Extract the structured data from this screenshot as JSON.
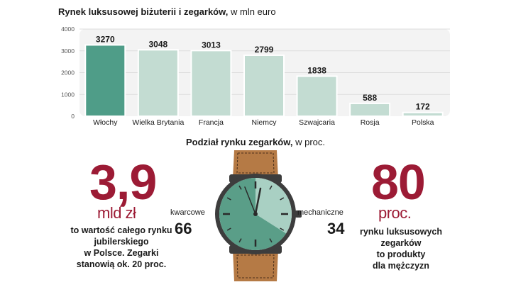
{
  "chart_title": {
    "bold": "Rynek luksusowej biżuterii i zegarków,",
    "unit": " w mln euro"
  },
  "chart_data": [
    {
      "type": "bar",
      "title": "Rynek luksusowej biżuterii i zegarków, w mln euro",
      "categories": [
        "Włochy",
        "Wielka Brytania",
        "Francja",
        "Niemcy",
        "Szwajcaria",
        "Rosja",
        "Polska"
      ],
      "values": [
        3270,
        3048,
        3013,
        2799,
        1838,
        588,
        172
      ],
      "highlight_index": 0,
      "yticks": [
        0,
        1000,
        2000,
        3000,
        4000
      ],
      "ylim": [
        0,
        4000
      ],
      "grid": true,
      "colors": {
        "highlight": "#4f9d88",
        "bar": "#c3dcd2",
        "bar_edge": "#ffffff",
        "panel": "#f3f3f3"
      }
    },
    {
      "type": "pie",
      "title": "Podział rynku zegarków, w proc.",
      "labels": [
        "kwarcowe",
        "mechaniczne"
      ],
      "values": [
        66,
        34
      ],
      "colors": [
        "#5a9e88",
        "#a9d0c3"
      ]
    }
  ],
  "sub_title": {
    "bold": "Podział rynku zegarków,",
    "unit": " w proc."
  },
  "left_stat": {
    "value": "3,9",
    "unit": "mld zł",
    "desc": [
      "to wartość całego rynku",
      "jubilerskiego",
      "w Polsce. Zegarki",
      "stanowią ok. 20 proc."
    ]
  },
  "right_stat": {
    "value": "80",
    "unit": "proc.",
    "desc": [
      "rynku luksusowych",
      "zegarków",
      "to produkty",
      "dla mężczyzn"
    ]
  },
  "quartz": {
    "label": "kwarcowe",
    "value": "66"
  },
  "mechanical": {
    "label": "mechaniczne",
    "value": "34"
  },
  "colors": {
    "accent_red": "#9c1b35",
    "strap": "#b57a45",
    "case": "#3d3d3d"
  }
}
